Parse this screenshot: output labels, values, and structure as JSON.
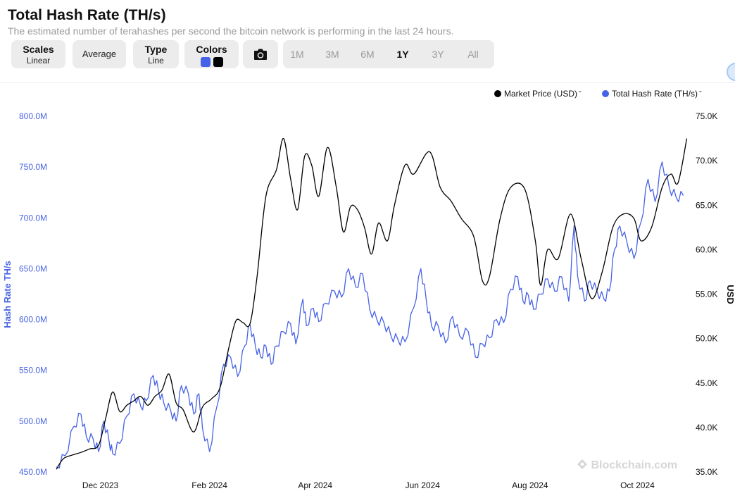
{
  "header": {
    "title": "Total Hash Rate (TH/s)",
    "subtitle": "The estimated number of terahashes per second the bitcoin network is performing in the last 24 hours."
  },
  "toolbar": {
    "scales_label": "Scales",
    "scales_value": "Linear",
    "average_label": "Average",
    "type_label": "Type",
    "type_value": "Line",
    "colors_label": "Colors",
    "camera_icon": "camera-icon",
    "ranges": [
      "1M",
      "3M",
      "6M",
      "1Y",
      "3Y",
      "All"
    ],
    "active_range": "1Y"
  },
  "colors": {
    "hash_rate": "#4662e6",
    "market_price": "#000000",
    "accent_blue": "#4662e6"
  },
  "legend": {
    "market_price": "Market Price (USD)",
    "hash_rate": "Total Hash Rate (TH/s)"
  },
  "watermark": "Blockchain.com",
  "chart_data": {
    "type": "line",
    "x_tick_labels": [
      "Dec 2023",
      "Feb 2024",
      "Apr 2024",
      "Jun 2024",
      "Aug 2024",
      "Oct 2024"
    ],
    "x_tick_dates": [
      "2023-12-01",
      "2024-02-01",
      "2024-04-01",
      "2024-06-01",
      "2024-08-01",
      "2024-10-01"
    ],
    "x_range": [
      "2023-11-06",
      "2024-10-30"
    ],
    "y_left": {
      "label": "Hash Rate TH/s",
      "tick_labels": [
        "450.0M",
        "500.0M",
        "550.0M",
        "600.0M",
        "650.0M",
        "700.0M",
        "750.0M",
        "800.0M"
      ],
      "ticks": [
        450,
        500,
        550,
        600,
        650,
        700,
        750,
        800
      ],
      "unit": "M",
      "range": [
        450,
        800
      ]
    },
    "y_right": {
      "label": "USD",
      "tick_labels": [
        "35.0K",
        "40.0K",
        "45.0K",
        "50.0K",
        "55.0K",
        "60.0K",
        "65.0K",
        "70.0K",
        "75.0K"
      ],
      "ticks": [
        35,
        40,
        45,
        50,
        55,
        60,
        65,
        70,
        75
      ],
      "unit": "K",
      "range": [
        35,
        75
      ]
    },
    "grid": false,
    "legend_position": "top-right",
    "series": [
      {
        "name": "Total Hash Rate (TH/s)",
        "axis": "left",
        "color": "#4662e6",
        "points": [
          [
            "2023-11-06",
            455
          ],
          [
            "2023-11-11",
            466
          ],
          [
            "2023-11-16",
            495
          ],
          [
            "2023-11-20",
            507
          ],
          [
            "2023-11-23",
            485
          ],
          [
            "2023-11-27",
            482
          ],
          [
            "2023-11-30",
            470
          ],
          [
            "2023-12-03",
            500
          ],
          [
            "2023-12-06",
            480
          ],
          [
            "2023-12-08",
            468
          ],
          [
            "2023-12-12",
            478
          ],
          [
            "2023-12-16",
            505
          ],
          [
            "2023-12-20",
            527
          ],
          [
            "2023-12-24",
            514
          ],
          [
            "2023-12-27",
            520
          ],
          [
            "2023-12-31",
            545
          ],
          [
            "2024-01-03",
            530
          ],
          [
            "2024-01-06",
            518
          ],
          [
            "2024-01-10",
            510
          ],
          [
            "2024-01-13",
            500
          ],
          [
            "2024-01-16",
            535
          ],
          [
            "2024-01-20",
            527
          ],
          [
            "2024-01-23",
            507
          ],
          [
            "2024-01-26",
            527
          ],
          [
            "2024-01-28",
            493
          ],
          [
            "2024-02-01",
            470
          ],
          [
            "2024-02-05",
            513
          ],
          [
            "2024-02-09",
            556
          ],
          [
            "2024-02-13",
            563
          ],
          [
            "2024-02-17",
            544
          ],
          [
            "2024-02-21",
            574
          ],
          [
            "2024-02-24",
            595
          ],
          [
            "2024-02-27",
            574
          ],
          [
            "2024-03-01",
            563
          ],
          [
            "2024-03-04",
            574
          ],
          [
            "2024-03-07",
            556
          ],
          [
            "2024-03-10",
            574
          ],
          [
            "2024-03-14",
            588
          ],
          [
            "2024-03-18",
            596
          ],
          [
            "2024-03-21",
            576
          ],
          [
            "2024-03-25",
            620
          ],
          [
            "2024-03-27",
            594
          ],
          [
            "2024-03-31",
            611
          ],
          [
            "2024-04-03",
            598
          ],
          [
            "2024-04-07",
            616
          ],
          [
            "2024-04-12",
            628
          ],
          [
            "2024-04-16",
            622
          ],
          [
            "2024-04-20",
            650
          ],
          [
            "2024-04-24",
            632
          ],
          [
            "2024-04-28",
            645
          ],
          [
            "2024-05-02",
            610
          ],
          [
            "2024-05-06",
            600
          ],
          [
            "2024-05-10",
            597
          ],
          [
            "2024-05-14",
            584
          ],
          [
            "2024-05-18",
            580
          ],
          [
            "2024-05-22",
            578
          ],
          [
            "2024-05-27",
            612
          ],
          [
            "2024-05-31",
            650
          ],
          [
            "2024-06-03",
            620
          ],
          [
            "2024-06-06",
            594
          ],
          [
            "2024-06-10",
            593
          ],
          [
            "2024-06-14",
            577
          ],
          [
            "2024-06-18",
            603
          ],
          [
            "2024-06-22",
            584
          ],
          [
            "2024-06-27",
            588
          ],
          [
            "2024-07-01",
            563
          ],
          [
            "2024-07-05",
            576
          ],
          [
            "2024-07-09",
            582
          ],
          [
            "2024-07-13",
            600
          ],
          [
            "2024-07-17",
            597
          ],
          [
            "2024-07-21",
            630
          ],
          [
            "2024-07-25",
            642
          ],
          [
            "2024-07-28",
            618
          ],
          [
            "2024-07-31",
            624
          ],
          [
            "2024-08-03",
            610
          ],
          [
            "2024-08-07",
            625
          ],
          [
            "2024-08-11",
            640
          ],
          [
            "2024-08-15",
            628
          ],
          [
            "2024-08-19",
            642
          ],
          [
            "2024-08-23",
            618
          ],
          [
            "2024-08-26",
            692
          ],
          [
            "2024-08-28",
            643
          ],
          [
            "2024-09-01",
            618
          ],
          [
            "2024-09-04",
            638
          ],
          [
            "2024-09-08",
            628
          ],
          [
            "2024-09-12",
            620
          ],
          [
            "2024-09-15",
            628
          ],
          [
            "2024-09-18",
            669
          ],
          [
            "2024-09-21",
            692
          ],
          [
            "2024-09-25",
            676
          ],
          [
            "2024-09-29",
            660
          ],
          [
            "2024-10-03",
            696
          ],
          [
            "2024-10-07",
            738
          ],
          [
            "2024-10-11",
            716
          ],
          [
            "2024-10-15",
            755
          ],
          [
            "2024-10-19",
            730
          ],
          [
            "2024-10-23",
            720
          ],
          [
            "2024-10-27",
            722
          ]
        ]
      },
      {
        "name": "Market Price (USD)",
        "axis": "right",
        "color": "#000000",
        "points": [
          [
            "2023-11-06",
            35.3
          ],
          [
            "2023-11-10",
            36.5
          ],
          [
            "2023-11-15",
            36.9
          ],
          [
            "2023-11-20",
            37.2
          ],
          [
            "2023-11-25",
            37.6
          ],
          [
            "2023-11-30",
            38.0
          ],
          [
            "2023-12-04",
            41.0
          ],
          [
            "2023-12-08",
            44.0
          ],
          [
            "2023-12-12",
            41.8
          ],
          [
            "2023-12-16",
            42.5
          ],
          [
            "2023-12-20",
            43.0
          ],
          [
            "2023-12-24",
            43.5
          ],
          [
            "2023-12-28",
            42.5
          ],
          [
            "2024-01-01",
            43.5
          ],
          [
            "2024-01-05",
            44.2
          ],
          [
            "2024-01-09",
            46.0
          ],
          [
            "2024-01-13",
            42.8
          ],
          [
            "2024-01-17",
            42.0
          ],
          [
            "2024-01-23",
            39.5
          ],
          [
            "2024-01-28",
            42.3
          ],
          [
            "2024-02-02",
            43.2
          ],
          [
            "2024-02-07",
            44.5
          ],
          [
            "2024-02-12",
            49.0
          ],
          [
            "2024-02-16",
            52.0
          ],
          [
            "2024-02-20",
            51.8
          ],
          [
            "2024-02-24",
            51.7
          ],
          [
            "2024-02-28",
            57.0
          ],
          [
            "2024-03-04",
            66.0
          ],
          [
            "2024-03-10",
            69.0
          ],
          [
            "2024-03-14",
            72.5
          ],
          [
            "2024-03-18",
            68.0
          ],
          [
            "2024-03-22",
            64.5
          ],
          [
            "2024-03-26",
            70.5
          ],
          [
            "2024-03-30",
            69.5
          ],
          [
            "2024-04-03",
            66.0
          ],
          [
            "2024-04-08",
            71.5
          ],
          [
            "2024-04-13",
            67.0
          ],
          [
            "2024-04-17",
            62.0
          ],
          [
            "2024-04-21",
            64.8
          ],
          [
            "2024-04-25",
            64.5
          ],
          [
            "2024-04-29",
            62.5
          ],
          [
            "2024-05-03",
            59.5
          ],
          [
            "2024-05-07",
            63.0
          ],
          [
            "2024-05-12",
            61.0
          ],
          [
            "2024-05-16",
            65.0
          ],
          [
            "2024-05-22",
            69.5
          ],
          [
            "2024-05-27",
            68.5
          ],
          [
            "2024-06-05",
            71.0
          ],
          [
            "2024-06-11",
            67.0
          ],
          [
            "2024-06-17",
            65.5
          ],
          [
            "2024-06-23",
            63.5
          ],
          [
            "2024-06-30",
            61.5
          ],
          [
            "2024-07-05",
            56.5
          ],
          [
            "2024-07-09",
            57.0
          ],
          [
            "2024-07-15",
            63.5
          ],
          [
            "2024-07-21",
            67.0
          ],
          [
            "2024-07-29",
            66.8
          ],
          [
            "2024-08-04",
            61.0
          ],
          [
            "2024-08-07",
            56.0
          ],
          [
            "2024-08-11",
            60.0
          ],
          [
            "2024-08-17",
            59.0
          ],
          [
            "2024-08-24",
            64.0
          ],
          [
            "2024-08-30",
            59.0
          ],
          [
            "2024-09-05",
            54.5
          ],
          [
            "2024-09-11",
            57.5
          ],
          [
            "2024-09-17",
            62.5
          ],
          [
            "2024-09-23",
            64.0
          ],
          [
            "2024-09-29",
            63.5
          ],
          [
            "2024-10-03",
            61.0
          ],
          [
            "2024-10-09",
            62.5
          ],
          [
            "2024-10-15",
            67.0
          ],
          [
            "2024-10-20",
            68.5
          ],
          [
            "2024-10-24",
            67.5
          ],
          [
            "2024-10-29",
            72.5
          ]
        ]
      }
    ]
  }
}
